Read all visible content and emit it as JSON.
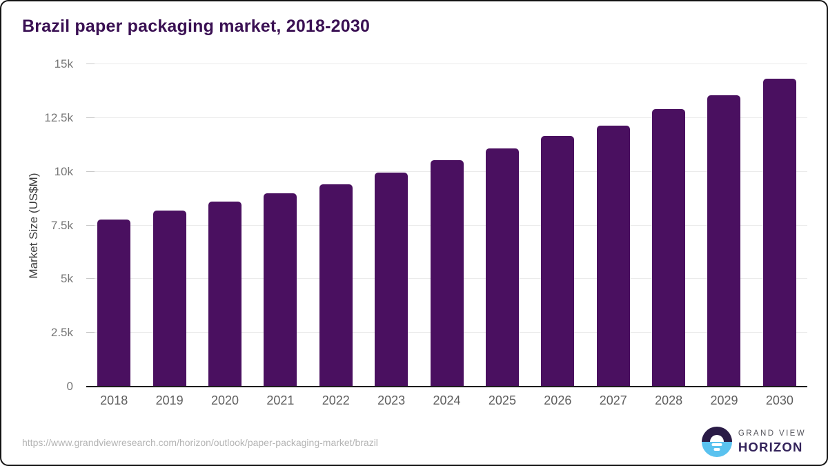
{
  "title": "Brazil paper packaging market, 2018-2030",
  "chart_data": {
    "type": "bar",
    "title": "Brazil paper packaging market, 2018-2030",
    "categories": [
      "2018",
      "2019",
      "2020",
      "2021",
      "2022",
      "2023",
      "2024",
      "2025",
      "2026",
      "2027",
      "2028",
      "2029",
      "2030"
    ],
    "values": [
      7780,
      8200,
      8620,
      9000,
      9420,
      9950,
      10550,
      11090,
      11650,
      12150,
      12900,
      13570,
      14330
    ],
    "xlabel": "",
    "ylabel": "Market Size (US$M)",
    "ylim": [
      0,
      15000
    ],
    "y_ticks": [
      {
        "value": 0,
        "label": "0"
      },
      {
        "value": 2500,
        "label": "2.5k"
      },
      {
        "value": 5000,
        "label": "5k"
      },
      {
        "value": 7500,
        "label": "7.5k"
      },
      {
        "value": 10000,
        "label": "10k"
      },
      {
        "value": 12500,
        "label": "12.5k"
      },
      {
        "value": 15000,
        "label": "15k"
      }
    ],
    "grid": "horizontal",
    "legend": "none"
  },
  "colors": {
    "bar": "#4a1060",
    "title_text": "#3a1053",
    "axis_line": "#1c1c1c",
    "gridline": "#ebebeb",
    "logo_top": "#2a1b46",
    "logo_bottom": "#5ac2ef"
  },
  "footer": {
    "source_url": "https://www.grandviewresearch.com/horizon/outlook/paper-packaging-market/brazil",
    "logo": {
      "line1": "GRAND VIEW",
      "line2": "HORIZON"
    }
  }
}
